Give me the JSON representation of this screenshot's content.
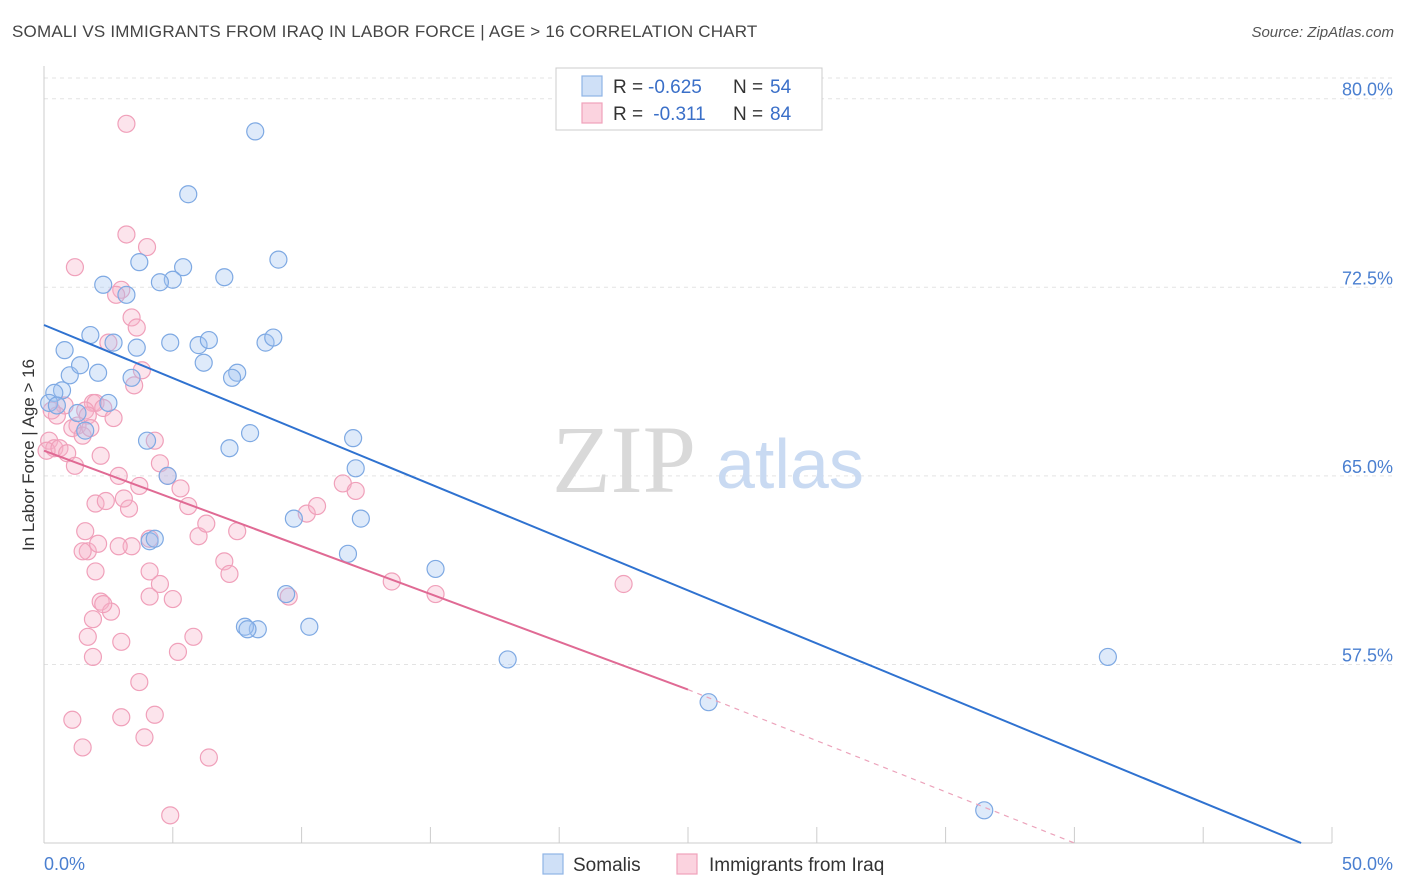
{
  "title": "SOMALI VS IMMIGRANTS FROM IRAQ IN LABOR FORCE | AGE > 16 CORRELATION CHART",
  "source": "Source: ZipAtlas.com",
  "watermark": {
    "zip": "ZIP",
    "atlas": "atlas"
  },
  "legend": {
    "rows": [
      {
        "r_label": "R =",
        "r_value": "-0.625",
        "n_label": "N =",
        "n_value": "54",
        "color": "#a9c8f0"
      },
      {
        "r_label": "R =",
        "r_value": " -0.311",
        "n_label": "N =",
        "n_value": "84",
        "color": "#f7b8cb"
      }
    ]
  },
  "bottom_legend": [
    "Somalis",
    "Immigrants from Iraq"
  ],
  "colors": {
    "blue": "#6fa0e0",
    "blue_line": "#2f72d0",
    "pink": "#f09ab5",
    "pink_line": "#e06a94"
  },
  "chart_data": {
    "type": "scatter",
    "title": "SOMALI VS IMMIGRANTS FROM IRAQ IN LABOR FORCE | AGE > 16 CORRELATION CHART",
    "xlabel": "",
    "ylabel": "In Labor Force | Age > 16",
    "xlim": [
      0,
      50
    ],
    "ylim": [
      50.4,
      81.3
    ],
    "x_tick_labels": [
      "0.0%",
      "50.0%"
    ],
    "y_ticks": [
      57.5,
      65.0,
      72.5,
      80.0
    ],
    "y_tick_labels": [
      "57.5%",
      "65.0%",
      "72.5%",
      "80.0%"
    ],
    "grid": true,
    "series": [
      {
        "name": "Somalis",
        "color": "#6fa0e0",
        "x": [
          8.2,
          5.6,
          3.7,
          5.4,
          9.1,
          2.3,
          3.2,
          5.0,
          7.0,
          4.5,
          4.9,
          0.8,
          1.8,
          2.7,
          1.0,
          3.6,
          6.0,
          6.4,
          7.5,
          8.6,
          8.9,
          1.4,
          2.1,
          3.4,
          6.2,
          7.3,
          0.7,
          0.4,
          0.2,
          0.5,
          1.3,
          1.6,
          2.5,
          4.0,
          4.8,
          7.2,
          8.0,
          12.0,
          12.1,
          12.3,
          11.8,
          10.3,
          8.3,
          7.8,
          7.9,
          9.4,
          4.1,
          4.3,
          9.7,
          15.2,
          18.0,
          25.8,
          41.3,
          36.5
        ],
        "y": [
          78.7,
          76.2,
          73.5,
          73.3,
          73.6,
          72.6,
          72.2,
          72.8,
          72.9,
          72.7,
          70.3,
          70.0,
          70.6,
          70.3,
          69.0,
          70.1,
          70.2,
          70.4,
          69.1,
          70.3,
          70.5,
          69.4,
          69.1,
          68.9,
          69.5,
          68.9,
          68.4,
          68.3,
          67.9,
          67.8,
          67.5,
          66.8,
          67.9,
          66.4,
          65.0,
          66.1,
          66.7,
          66.5,
          65.3,
          63.3,
          61.9,
          59.0,
          58.9,
          59.0,
          58.9,
          60.3,
          62.4,
          62.5,
          63.3,
          61.3,
          57.7,
          56.0,
          57.8,
          51.7
        ]
      },
      {
        "name": "Immigrants from Iraq",
        "color": "#f09ab5",
        "x": [
          3.2,
          3.2,
          4.0,
          1.2,
          3.0,
          3.4,
          3.6,
          3.8,
          2.5,
          2.8,
          3.5,
          1.9,
          2.0,
          1.6,
          2.3,
          1.7,
          1.3,
          1.1,
          0.8,
          0.5,
          0.3,
          0.2,
          0.4,
          0.1,
          0.6,
          0.9,
          1.2,
          1.5,
          1.8,
          2.7,
          2.2,
          2.9,
          3.3,
          3.1,
          4.3,
          4.5,
          4.8,
          5.3,
          5.6,
          6.0,
          6.3,
          7.0,
          7.5,
          2.0,
          2.4,
          1.6,
          3.7,
          4.1,
          3.4,
          1.7,
          2.2,
          2.6,
          1.9,
          1.7,
          3.0,
          3.7,
          4.1,
          4.5,
          1.9,
          3.0,
          4.3,
          5.0,
          7.2,
          9.5,
          10.2,
          10.6,
          11.6,
          12.1,
          13.5,
          15.2,
          22.5,
          2.3,
          2.0,
          1.5,
          2.1,
          2.9,
          4.1,
          5.2,
          5.8,
          6.4,
          4.9,
          3.9,
          1.5,
          1.1
        ],
        "y": [
          79.0,
          74.6,
          74.1,
          73.3,
          72.4,
          71.3,
          70.9,
          69.2,
          70.3,
          72.2,
          68.6,
          67.9,
          67.9,
          67.6,
          67.7,
          67.4,
          67.0,
          66.9,
          67.8,
          67.4,
          67.6,
          66.4,
          66.1,
          66.0,
          66.1,
          65.9,
          65.4,
          66.6,
          66.9,
          67.3,
          65.8,
          65.0,
          63.7,
          64.1,
          66.4,
          65.5,
          65.0,
          64.5,
          63.8,
          62.6,
          63.1,
          61.6,
          62.8,
          63.9,
          64.0,
          62.8,
          64.6,
          62.5,
          62.2,
          62.0,
          60.0,
          59.6,
          59.3,
          58.6,
          58.4,
          56.8,
          60.2,
          60.7,
          57.8,
          55.4,
          55.5,
          60.1,
          61.1,
          60.2,
          63.5,
          63.8,
          64.7,
          64.4,
          60.8,
          60.3,
          60.7,
          59.9,
          61.2,
          62.0,
          62.3,
          62.2,
          61.2,
          58.0,
          58.6,
          53.8,
          51.5,
          54.6,
          54.2,
          55.3
        ]
      }
    ],
    "trend_lines": [
      {
        "series": "Somalis",
        "x": [
          0,
          48.8
        ],
        "y": [
          71.0,
          50.4
        ]
      },
      {
        "series": "Immigrants from Iraq",
        "x": [
          0,
          25.0
        ],
        "y": [
          66.0,
          56.5
        ],
        "dashed_to": [
          40.0,
          50.4
        ]
      }
    ]
  }
}
